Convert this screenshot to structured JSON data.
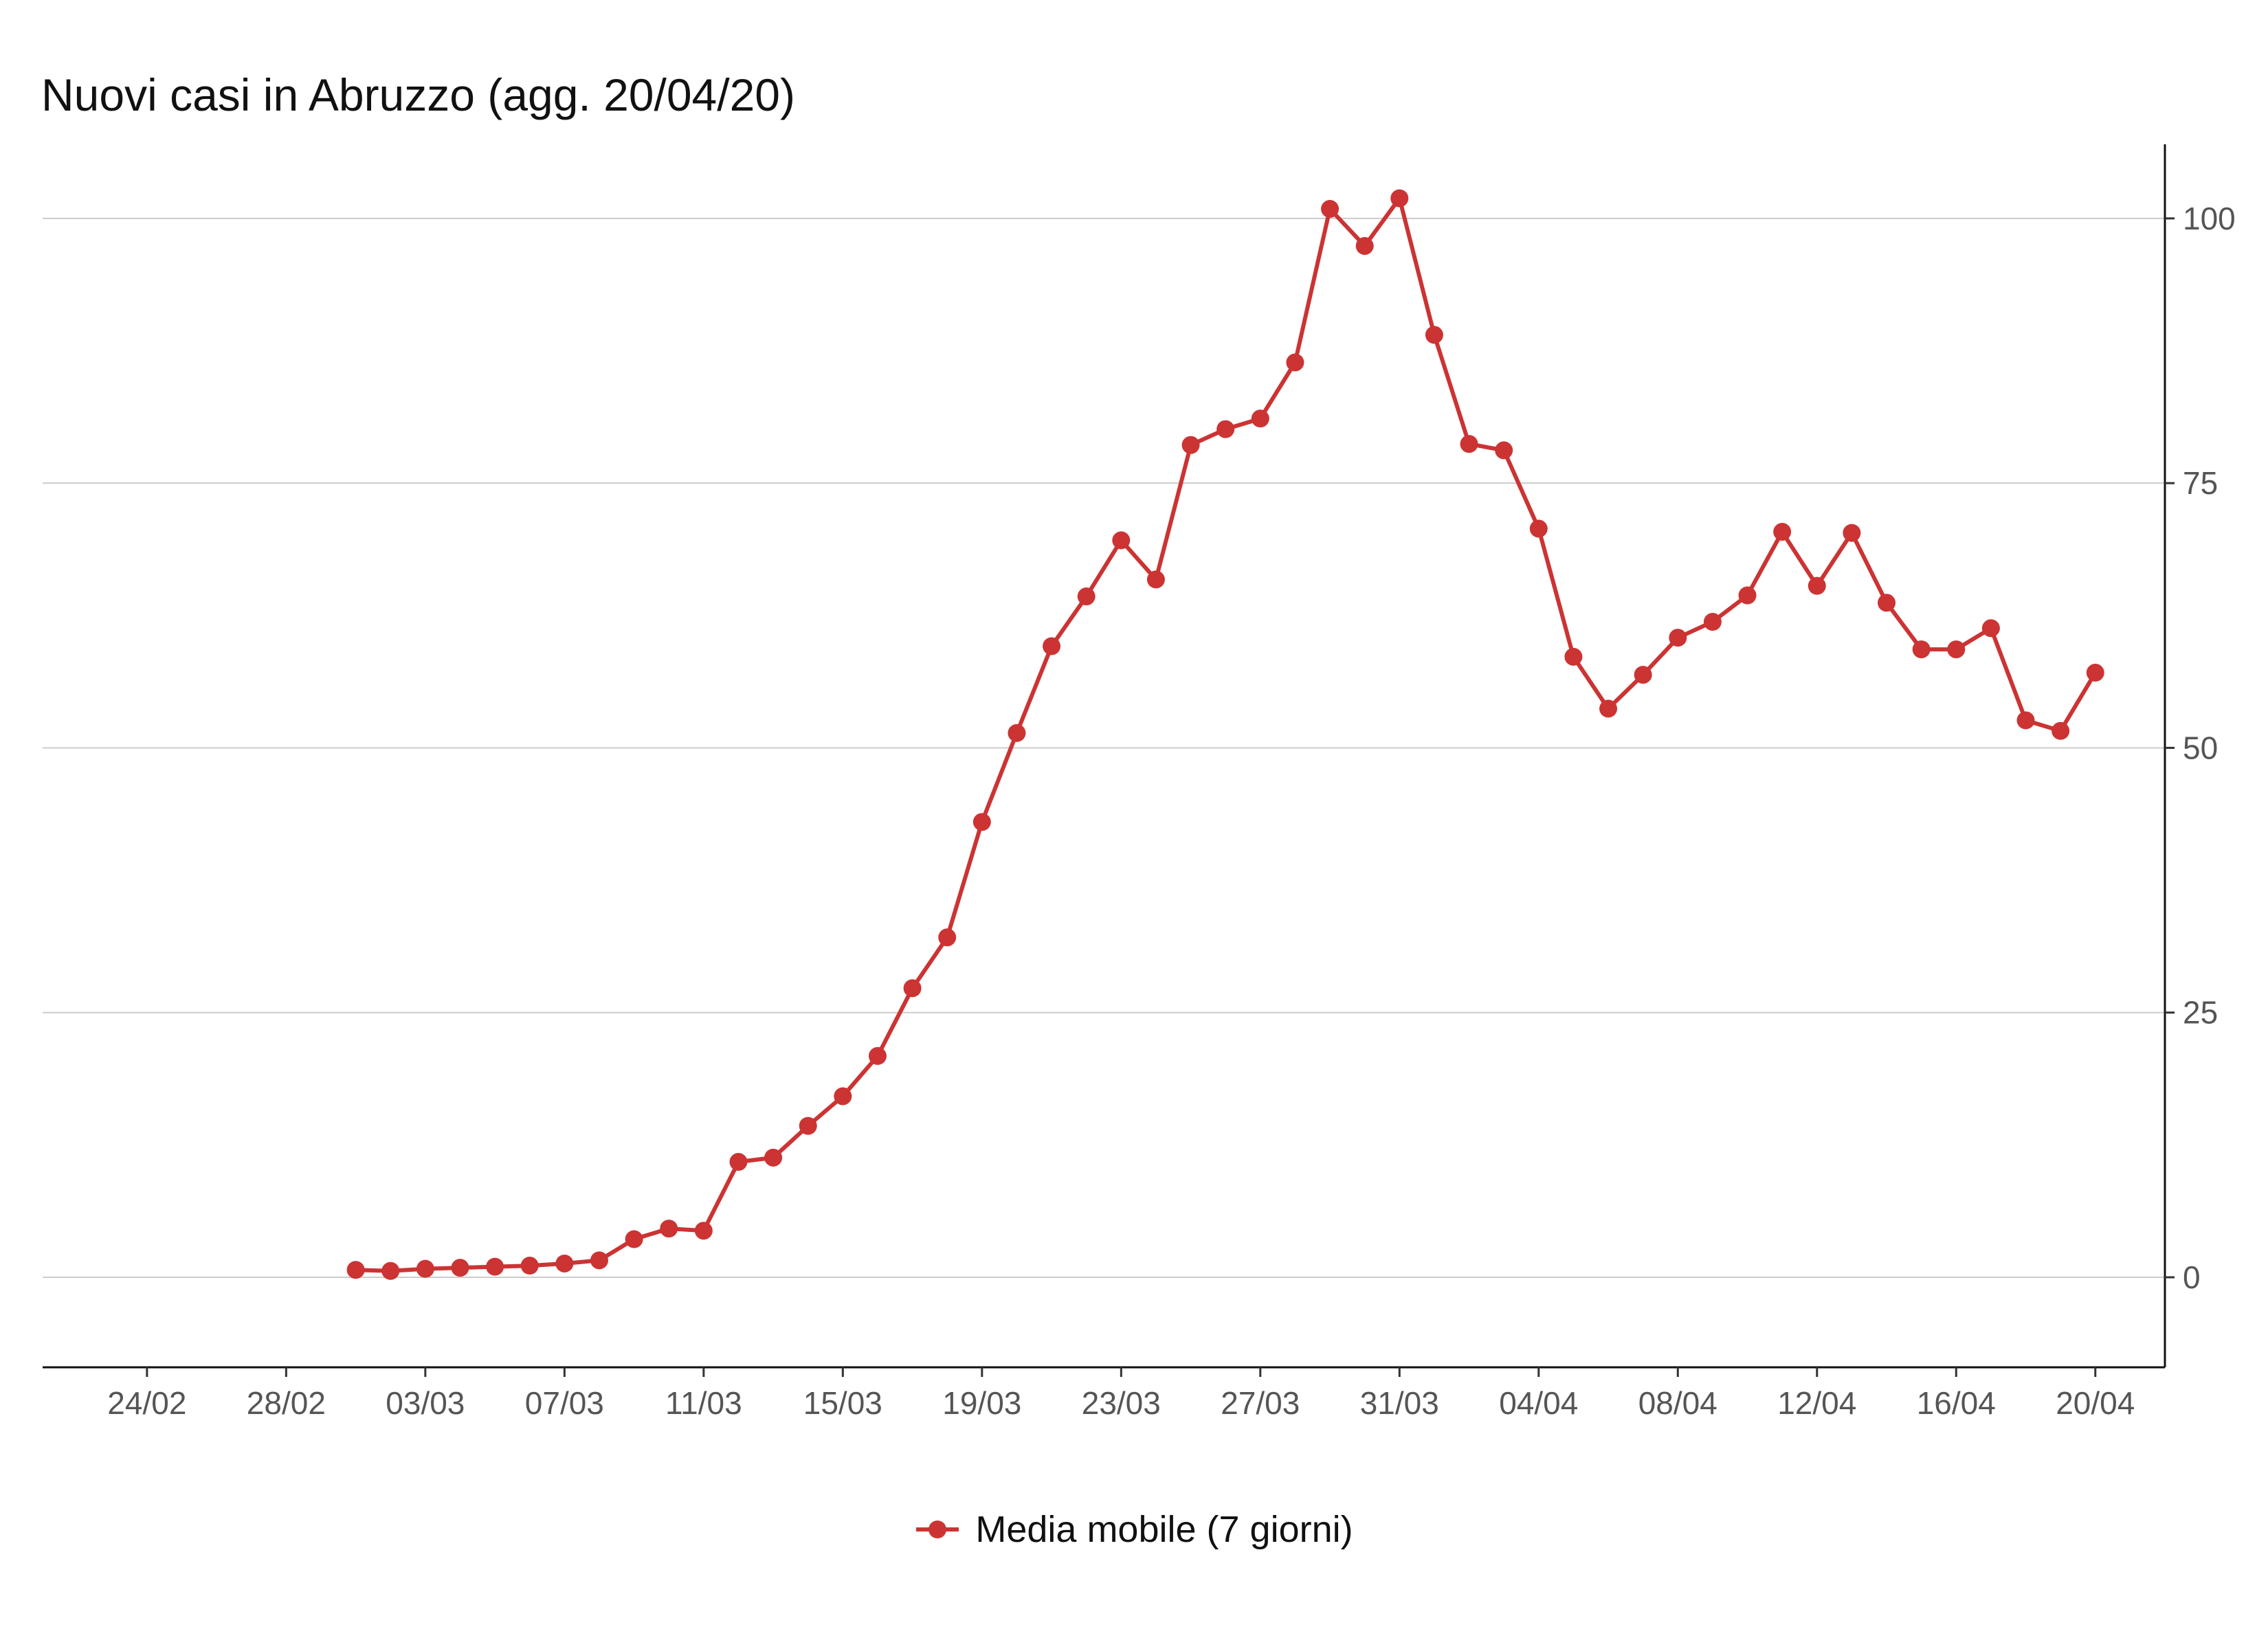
{
  "chart_data": {
    "type": "line",
    "title": "Nuovi casi in Abruzzo (agg. 20/04/20)",
    "xlabel": "",
    "ylabel": "",
    "x_range": [
      "2020-02-21",
      "2020-04-22"
    ],
    "ylim": [
      -8.5,
      107
    ],
    "y_ticks": [
      0,
      25,
      50,
      75,
      100
    ],
    "y_tick_labels": [
      "0",
      "25",
      "50",
      "75",
      "100"
    ],
    "y_axis_side": "right",
    "x_ticks": [
      "2020-02-24",
      "2020-02-28",
      "2020-03-03",
      "2020-03-07",
      "2020-03-11",
      "2020-03-15",
      "2020-03-19",
      "2020-03-23",
      "2020-03-27",
      "2020-03-31",
      "2020-04-04",
      "2020-04-08",
      "2020-04-12",
      "2020-04-16",
      "2020-04-20"
    ],
    "x_tick_labels": [
      "24/02",
      "28/02",
      "03/03",
      "07/03",
      "11/03",
      "15/03",
      "19/03",
      "23/03",
      "27/03",
      "31/03",
      "04/04",
      "08/04",
      "12/04",
      "16/04",
      "20/04"
    ],
    "grid": "horizontal",
    "legend_position": "bottom",
    "series": [
      {
        "name": "Media mobile (7 giorni)",
        "color": "#cc3333",
        "marker": "circle",
        "x": [
          "2020-03-01",
          "2020-03-02",
          "2020-03-03",
          "2020-03-04",
          "2020-03-05",
          "2020-03-06",
          "2020-03-07",
          "2020-03-08",
          "2020-03-09",
          "2020-03-10",
          "2020-03-11",
          "2020-03-12",
          "2020-03-13",
          "2020-03-14",
          "2020-03-15",
          "2020-03-16",
          "2020-03-17",
          "2020-03-18",
          "2020-03-19",
          "2020-03-20",
          "2020-03-21",
          "2020-03-22",
          "2020-03-23",
          "2020-03-24",
          "2020-03-25",
          "2020-03-26",
          "2020-03-27",
          "2020-03-28",
          "2020-03-29",
          "2020-03-30",
          "2020-03-31",
          "2020-04-01",
          "2020-04-02",
          "2020-04-03",
          "2020-04-04",
          "2020-04-05",
          "2020-04-06",
          "2020-04-07",
          "2020-04-08",
          "2020-04-09",
          "2020-04-10",
          "2020-04-11",
          "2020-04-12",
          "2020-04-13",
          "2020-04-14",
          "2020-04-15",
          "2020-04-16",
          "2020-04-17",
          "2020-04-18",
          "2020-04-19",
          "2020-04-20"
        ],
        "values": [
          0.7,
          0.6,
          0.8,
          0.9,
          1.0,
          1.1,
          1.3,
          1.6,
          3.6,
          4.6,
          4.4,
          10.9,
          11.3,
          14.3,
          17.1,
          20.9,
          27.3,
          32.1,
          43.0,
          51.4,
          59.6,
          64.3,
          69.6,
          65.9,
          78.6,
          80.1,
          81.1,
          86.4,
          100.9,
          97.4,
          101.9,
          89.0,
          78.7,
          78.1,
          70.7,
          58.6,
          53.7,
          56.9,
          60.4,
          61.9,
          64.4,
          70.4,
          65.3,
          70.3,
          63.7,
          59.3,
          59.3,
          61.3,
          52.6,
          51.6,
          57.1
        ]
      }
    ]
  }
}
